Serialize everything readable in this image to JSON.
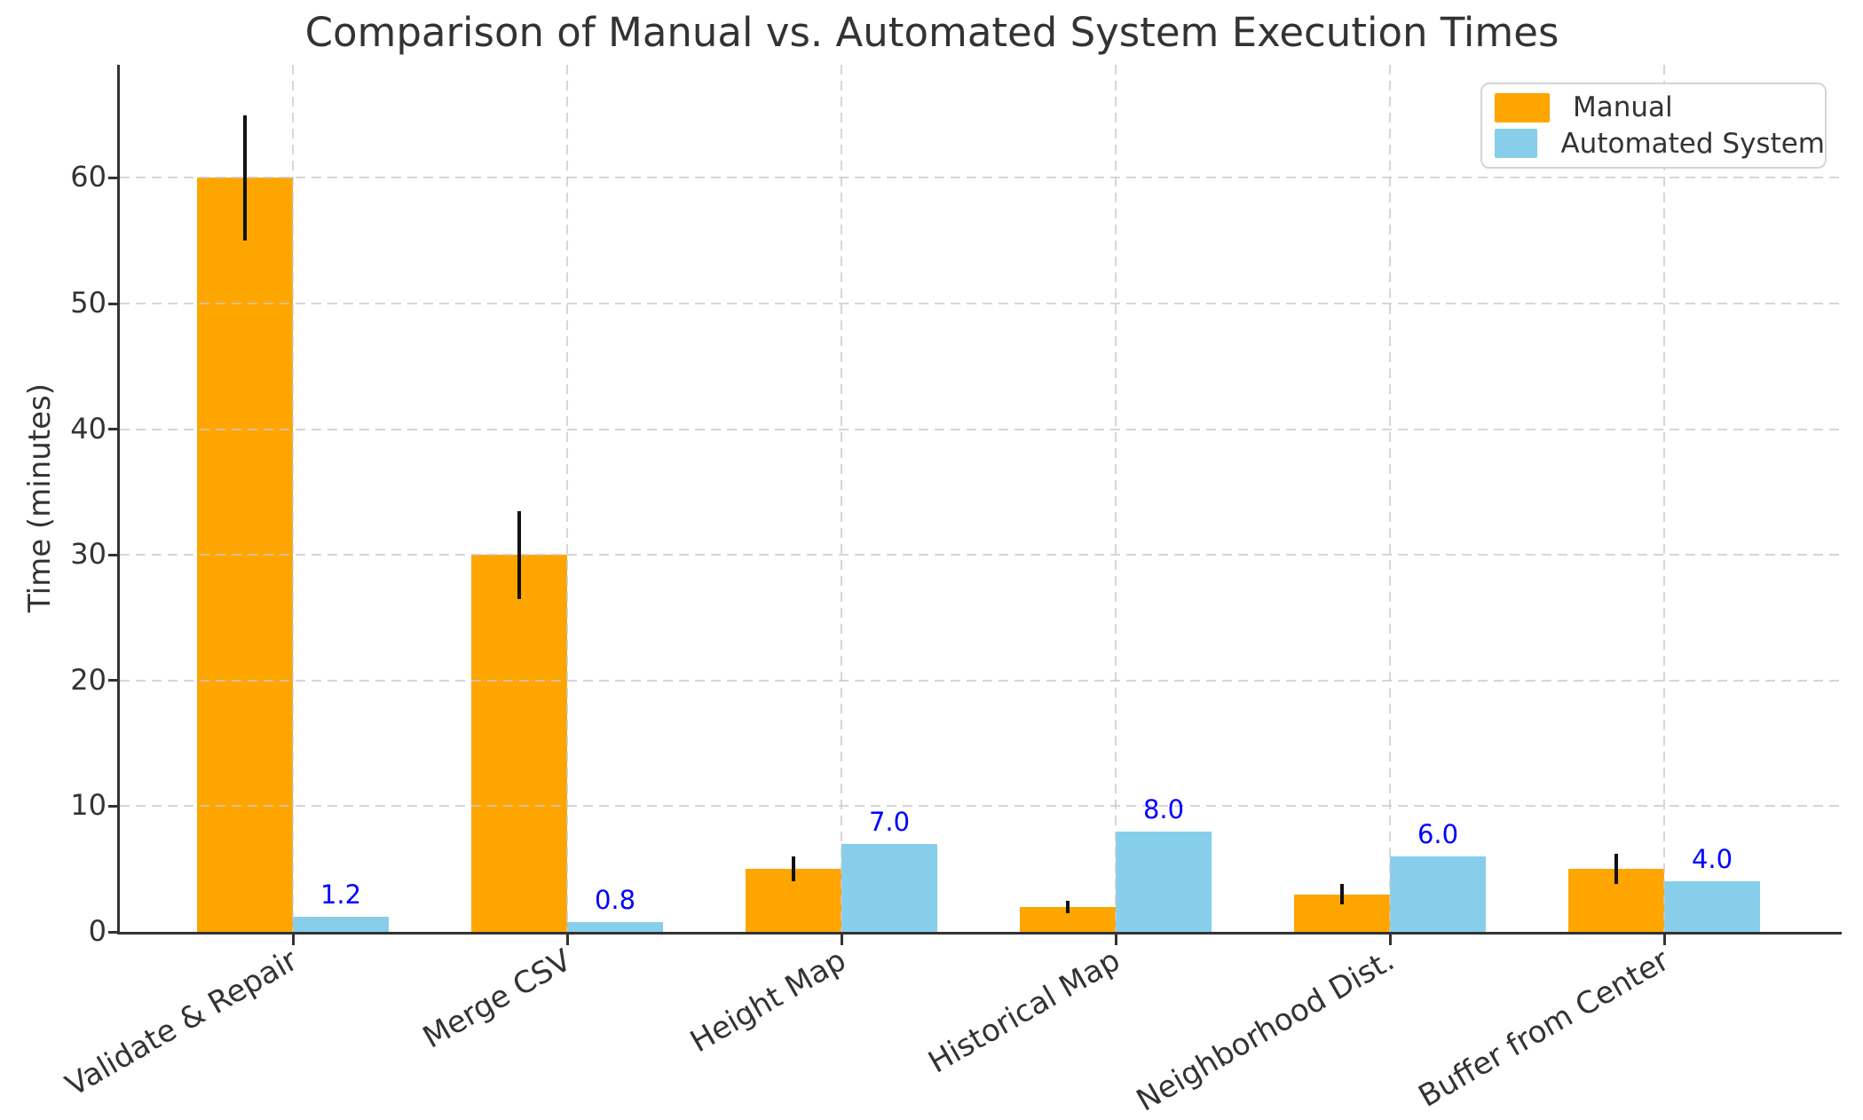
{
  "chart_data": {
    "type": "bar",
    "title": "Comparison of Manual vs. Automated System Execution Times",
    "xlabel": "",
    "ylabel": "Time (minutes)",
    "ylim": [
      0,
      69
    ],
    "y_ticks": [
      0,
      10,
      20,
      30,
      40,
      50,
      60
    ],
    "grid": "dashed, horizontal and vertical, drawn over bars",
    "legend_position": "upper right",
    "categories": [
      "Validate & Repair",
      "Merge CSV",
      "Height Map",
      "Historical Map",
      "Neighborhood Dist.",
      "Buffer from Center"
    ],
    "series": [
      {
        "name": "Manual",
        "color": "#FFA500",
        "values": [
          60,
          30,
          5,
          2,
          3,
          5
        ],
        "error_bars": [
          5,
          3.5,
          1,
          0.5,
          0.8,
          1.2
        ]
      },
      {
        "name": "Automated System",
        "color": "#87CEEB",
        "values": [
          1.2,
          0.8,
          7,
          8,
          6,
          4
        ],
        "value_labels": [
          "1.2",
          "0.8",
          "7.0",
          "8.0",
          "6.0",
          "4.0"
        ],
        "value_label_color": "#0000FF"
      }
    ]
  },
  "style": {
    "text_color": "#333333",
    "grid_color": "#c9c9c9",
    "error_bar_color": "#111111",
    "background": "#ffffff"
  }
}
